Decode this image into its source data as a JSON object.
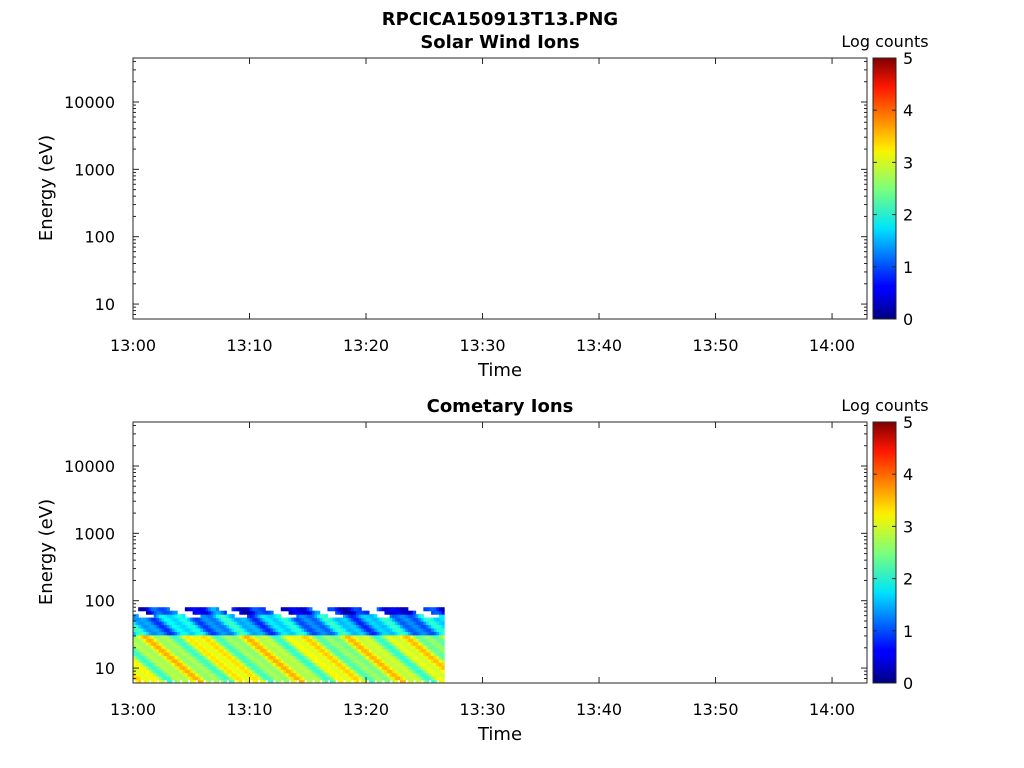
{
  "figure_title": "RPCICA150913T13.PNG",
  "chart_data": [
    {
      "type": "heatmap",
      "title": "Solar Wind Ions",
      "xlabel": "Time",
      "ylabel": "Energy (eV)",
      "x_ticks": [
        "13:00",
        "13:10",
        "13:20",
        "13:30",
        "13:40",
        "13:50",
        "14:00"
      ],
      "y_ticks": [
        "10",
        "100",
        "1000",
        "10000"
      ],
      "y_scale": "log",
      "ylim": [
        6,
        45000
      ],
      "xlim": [
        "13:00",
        "14:03"
      ],
      "colorbar": {
        "label": "Log counts",
        "range": [
          0,
          5
        ],
        "ticks": [
          "0",
          "1",
          "2",
          "3",
          "4",
          "5"
        ],
        "colormap": "jet"
      },
      "data_present": false
    },
    {
      "type": "heatmap",
      "title": "Cometary Ions",
      "xlabel": "Time",
      "ylabel": "Energy (eV)",
      "x_ticks": [
        "13:00",
        "13:10",
        "13:20",
        "13:30",
        "13:40",
        "13:50",
        "14:00"
      ],
      "y_ticks": [
        "10",
        "100",
        "1000",
        "10000"
      ],
      "y_scale": "log",
      "ylim": [
        6,
        45000
      ],
      "xlim": [
        "13:00",
        "14:03"
      ],
      "colorbar": {
        "label": "Log counts",
        "range": [
          0,
          5
        ],
        "ticks": [
          "0",
          "1",
          "2",
          "3",
          "4",
          "5"
        ],
        "colormap": "jet"
      },
      "data_present": true,
      "data_time_range": [
        "13:00",
        "13:26.7"
      ],
      "data_energy_range_eV": [
        6,
        80
      ],
      "typical_log_counts": {
        "low_energy_band_6_to_30_eV": 2.8,
        "mid_band_30_to_60_eV": 1.5,
        "top_band_60_to_80_eV": 0.8
      }
    }
  ]
}
